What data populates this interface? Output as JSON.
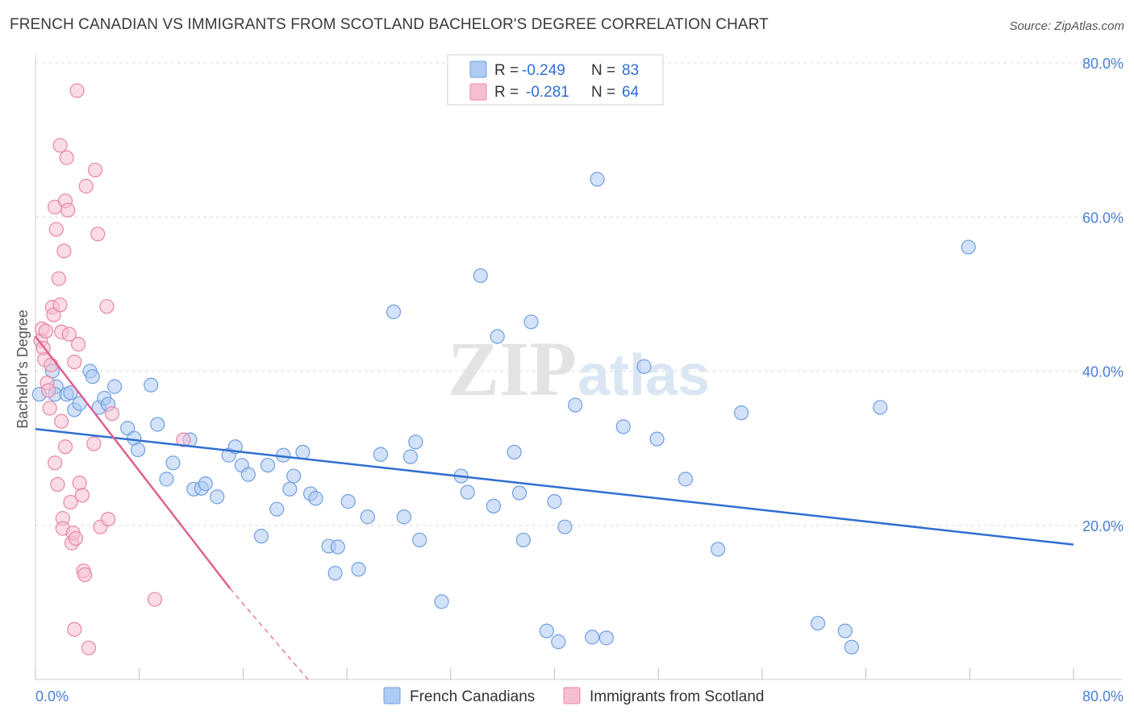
{
  "title": "FRENCH CANADIAN VS IMMIGRANTS FROM SCOTLAND BACHELOR'S DEGREE CORRELATION CHART",
  "source": "Source: ZipAtlas.com",
  "watermark": {
    "zip": "ZIP",
    "atlas": "atlas"
  },
  "colors": {
    "blue_fill": "#aecbf3",
    "blue_stroke": "#6f9fe0",
    "blue_line": "#2f6fd1",
    "pink_fill": "#f6bfd1",
    "pink_stroke": "#e885a8",
    "pink_line": "#e06090",
    "grid": "#dcdcdc",
    "axis_text": "#4a7fd4"
  },
  "chart_data": {
    "type": "scatter",
    "title": "FRENCH CANADIAN VS IMMIGRANTS FROM SCOTLAND BACHELOR'S DEGREE CORRELATION CHART",
    "xlabel": "",
    "ylabel": "Bachelor's Degree",
    "xlim": [
      0,
      80
    ],
    "ylim": [
      0,
      80
    ],
    "x_tick_labels": [
      "0.0%",
      "80.0%"
    ],
    "y_tick_labels": [
      "20.0%",
      "40.0%",
      "60.0%",
      "80.0%"
    ],
    "y_ticks": [
      20,
      40,
      60,
      80
    ],
    "legend": [
      {
        "name": "French Canadians",
        "r_label": "R =",
        "r": "-0.249",
        "n_label": "N =",
        "n": "83"
      },
      {
        "name": "Immigrants from Scotland",
        "r_label": "R =",
        "r": "-0.281",
        "n_label": "N =",
        "n": "64"
      }
    ],
    "series": [
      {
        "name": "French Canadians",
        "trend": {
          "x0": 0,
          "y0": 32.5,
          "x1": 80,
          "y1": 17.5
        },
        "points": [
          [
            0.3,
            37
          ],
          [
            1.3,
            40
          ],
          [
            1.6,
            38
          ],
          [
            1.5,
            37
          ],
          [
            2.4,
            37
          ],
          [
            3.0,
            35
          ],
          [
            2.7,
            37.2
          ],
          [
            3.4,
            35.8
          ],
          [
            4.2,
            40
          ],
          [
            4.4,
            39.3
          ],
          [
            4.9,
            35.3
          ],
          [
            5.3,
            36.5
          ],
          [
            5.6,
            35.7
          ],
          [
            6.1,
            38
          ],
          [
            7.1,
            32.6
          ],
          [
            7.6,
            31.3
          ],
          [
            7.9,
            29.8
          ],
          [
            8.9,
            38.2
          ],
          [
            9.4,
            33.1
          ],
          [
            10.1,
            26
          ],
          [
            10.6,
            28.1
          ],
          [
            11.9,
            31.1
          ],
          [
            12.2,
            24.7
          ],
          [
            12.8,
            24.8
          ],
          [
            13.1,
            25.4
          ],
          [
            14.0,
            23.7
          ],
          [
            14.9,
            29.1
          ],
          [
            15.4,
            30.2
          ],
          [
            15.9,
            27.8
          ],
          [
            16.4,
            26.6
          ],
          [
            17.4,
            18.6
          ],
          [
            17.9,
            27.8
          ],
          [
            18.6,
            22.1
          ],
          [
            19.1,
            29.1
          ],
          [
            19.6,
            24.7
          ],
          [
            19.9,
            26.4
          ],
          [
            20.6,
            29.5
          ],
          [
            21.2,
            24.1
          ],
          [
            21.6,
            23.5
          ],
          [
            22.6,
            17.3
          ],
          [
            23.3,
            17.2
          ],
          [
            23.1,
            13.8
          ],
          [
            24.1,
            23.1
          ],
          [
            24.9,
            14.3
          ],
          [
            25.6,
            21.1
          ],
          [
            26.6,
            29.2
          ],
          [
            27.6,
            47.7
          ],
          [
            28.4,
            21.1
          ],
          [
            28.9,
            28.9
          ],
          [
            29.3,
            30.8
          ],
          [
            29.6,
            18.1
          ],
          [
            31.3,
            10.1
          ],
          [
            32.8,
            26.4
          ],
          [
            33.3,
            24.3
          ],
          [
            34.3,
            52.4
          ],
          [
            35.3,
            22.5
          ],
          [
            35.6,
            44.5
          ],
          [
            36.9,
            29.5
          ],
          [
            37.3,
            24.2
          ],
          [
            37.6,
            18.1
          ],
          [
            38.2,
            46.4
          ],
          [
            39.4,
            6.3
          ],
          [
            40.0,
            23.1
          ],
          [
            40.3,
            4.9
          ],
          [
            40.8,
            19.8
          ],
          [
            41.6,
            35.6
          ],
          [
            42.9,
            5.5
          ],
          [
            43.3,
            64.9
          ],
          [
            44.0,
            5.4
          ],
          [
            45.3,
            32.8
          ],
          [
            46.9,
            40.6
          ],
          [
            47.9,
            31.2
          ],
          [
            50.1,
            26
          ],
          [
            52.6,
            16.9
          ],
          [
            54.4,
            34.6
          ],
          [
            60.3,
            7.3
          ],
          [
            62.4,
            6.3
          ],
          [
            62.9,
            4.2
          ],
          [
            65.1,
            35.3
          ],
          [
            71.9,
            56.1
          ]
        ]
      },
      {
        "name": "Immigrants from Scotland",
        "trend": {
          "x0": 0,
          "y0": 44.5,
          "x1": 15,
          "y1": 11.8
        },
        "trend_dashed": {
          "x0": 15,
          "y0": 11.8,
          "x1": 21,
          "y1": 0
        },
        "points": [
          [
            0.4,
            44
          ],
          [
            0.5,
            45.5
          ],
          [
            0.6,
            43
          ],
          [
            0.7,
            41.5
          ],
          [
            0.8,
            45.2
          ],
          [
            0.9,
            38.5
          ],
          [
            1.0,
            37.5
          ],
          [
            1.1,
            35.2
          ],
          [
            1.2,
            40.8
          ],
          [
            1.3,
            48.3
          ],
          [
            1.4,
            47.3
          ],
          [
            1.5,
            61.3
          ],
          [
            1.5,
            28.1
          ],
          [
            1.6,
            58.4
          ],
          [
            1.7,
            25.3
          ],
          [
            1.8,
            52
          ],
          [
            1.9,
            69.3
          ],
          [
            1.9,
            48.6
          ],
          [
            2.0,
            45.1
          ],
          [
            2.0,
            33.5
          ],
          [
            2.1,
            20.9
          ],
          [
            2.1,
            19.6
          ],
          [
            2.2,
            55.6
          ],
          [
            2.3,
            62.1
          ],
          [
            2.3,
            30.2
          ],
          [
            2.4,
            67.7
          ],
          [
            2.5,
            60.9
          ],
          [
            2.6,
            44.8
          ],
          [
            2.7,
            23
          ],
          [
            2.8,
            17.7
          ],
          [
            2.9,
            19
          ],
          [
            3.0,
            41.2
          ],
          [
            3.0,
            6.5
          ],
          [
            3.1,
            18.3
          ],
          [
            3.2,
            76.4
          ],
          [
            3.3,
            43.5
          ],
          [
            3.4,
            25.5
          ],
          [
            3.6,
            23.9
          ],
          [
            3.7,
            14.1
          ],
          [
            3.8,
            13.6
          ],
          [
            3.9,
            64
          ],
          [
            4.1,
            4.1
          ],
          [
            4.5,
            30.6
          ],
          [
            4.6,
            66.1
          ],
          [
            4.8,
            57.8
          ],
          [
            5.0,
            19.8
          ],
          [
            5.5,
            48.4
          ],
          [
            5.6,
            20.8
          ],
          [
            5.9,
            34.5
          ],
          [
            9.2,
            10.4
          ],
          [
            11.4,
            31.1
          ]
        ]
      }
    ]
  }
}
